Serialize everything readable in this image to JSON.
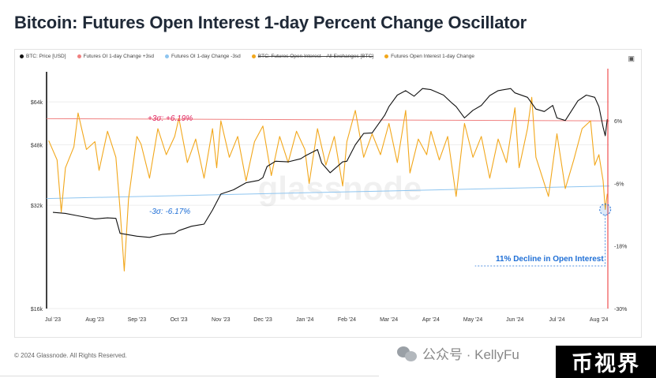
{
  "title": "Bitcoin: Futures Open Interest 1-day Percent Change Oscillator",
  "footer": "© 2024 Glassnode. All Rights Reserved.",
  "watermark": "glassnode",
  "wechat": {
    "text": "公众号 · KellyFu",
    "icon": "wechat-icon"
  },
  "stamp": "币视界",
  "colors": {
    "price": "#111111",
    "upper": "#f08080",
    "lower": "#8ec5f0",
    "oi_change": "#f2a71b",
    "red_line": "#f05050",
    "annotation": "#1f6fd6",
    "upper_text": "#e0245e"
  },
  "legend": [
    {
      "label": "BTC: Price [USD]",
      "color": "#111111",
      "strike": false
    },
    {
      "label": "Futures OI 1-day Change +3sd",
      "color": "#f08080",
      "strike": false
    },
    {
      "label": "Futures OI 1-day Change -3sd",
      "color": "#8ec5f0",
      "strike": false
    },
    {
      "label": "BTC: Futures Open Interest – All Exchanges [BTC]",
      "color": "#f2a71b",
      "strike": true
    },
    {
      "label": "Futures Open Interest 1-day Change",
      "color": "#f2a71b",
      "strike": false
    }
  ],
  "annotations": {
    "upper": "+3σ: +6.19%",
    "lower": "-3σ: -6.17%",
    "decline": "11% Decline in Open Interest"
  },
  "chart_data": {
    "type": "line",
    "x_ticks": [
      "Jul '23",
      "Aug '23",
      "Sep '23",
      "Oct '23",
      "Nov '23",
      "Dec '23",
      "Jan '24",
      "Feb '24",
      "Mar '24",
      "Apr '24",
      "May '24",
      "Jun '24",
      "Jul '24",
      "Aug '24"
    ],
    "x_tick_months": [
      0,
      1,
      2,
      3,
      4,
      5,
      6,
      7,
      8,
      9,
      10,
      11,
      12,
      13
    ],
    "x_range": [
      -0.15,
      13.25
    ],
    "y_left": {
      "ticks": [
        "$16k",
        "$32k",
        "$48k",
        "$64k"
      ],
      "tick_values": [
        16000,
        32000,
        48000,
        64000
      ],
      "range": [
        16000,
        80000
      ],
      "scale": "log"
    },
    "y_right": {
      "ticks": [
        "6%",
        "-6%",
        "-18%",
        "-30%"
      ],
      "tick_values": [
        6,
        -6,
        -18,
        -30
      ],
      "range": [
        -30,
        16
      ]
    },
    "series": [
      {
        "name": "BTC: Price [USD]",
        "axis": "left",
        "points": [
          [
            0,
            30500
          ],
          [
            0.3,
            30300
          ],
          [
            0.6,
            29800
          ],
          [
            1.0,
            29200
          ],
          [
            1.3,
            29400
          ],
          [
            1.5,
            29300
          ],
          [
            1.6,
            26500
          ],
          [
            2.0,
            26000
          ],
          [
            2.3,
            25800
          ],
          [
            2.6,
            26300
          ],
          [
            2.9,
            26500
          ],
          [
            3.0,
            27000
          ],
          [
            3.3,
            27800
          ],
          [
            3.6,
            28200
          ],
          [
            3.8,
            31000
          ],
          [
            4.0,
            34500
          ],
          [
            4.3,
            35500
          ],
          [
            4.6,
            37200
          ],
          [
            4.9,
            37800
          ],
          [
            5.0,
            38500
          ],
          [
            5.1,
            41500
          ],
          [
            5.3,
            43000
          ],
          [
            5.6,
            42800
          ],
          [
            5.9,
            43700
          ],
          [
            6.0,
            44500
          ],
          [
            6.3,
            46500
          ],
          [
            6.4,
            42500
          ],
          [
            6.6,
            39800
          ],
          [
            6.9,
            42800
          ],
          [
            7.0,
            43000
          ],
          [
            7.2,
            48000
          ],
          [
            7.4,
            51800
          ],
          [
            7.6,
            52000
          ],
          [
            7.9,
            58500
          ],
          [
            8.0,
            62000
          ],
          [
            8.2,
            67000
          ],
          [
            8.4,
            69000
          ],
          [
            8.6,
            66500
          ],
          [
            8.8,
            70000
          ],
          [
            9.0,
            69500
          ],
          [
            9.3,
            67000
          ],
          [
            9.5,
            63500
          ],
          [
            9.6,
            62000
          ],
          [
            9.8,
            57500
          ],
          [
            10.0,
            60500
          ],
          [
            10.2,
            62500
          ],
          [
            10.4,
            66800
          ],
          [
            10.6,
            69000
          ],
          [
            10.9,
            70000
          ],
          [
            11.0,
            68000
          ],
          [
            11.3,
            66000
          ],
          [
            11.5,
            61000
          ],
          [
            11.7,
            60000
          ],
          [
            11.9,
            62500
          ],
          [
            12.0,
            57500
          ],
          [
            12.2,
            56500
          ],
          [
            12.5,
            64500
          ],
          [
            12.7,
            67000
          ],
          [
            12.9,
            66000
          ],
          [
            13.0,
            62000
          ],
          [
            13.1,
            54000
          ],
          [
            13.15,
            51000
          ],
          [
            13.2,
            57000
          ]
        ]
      },
      {
        "name": "Futures OI 1-day Change +3sd",
        "axis": "right",
        "points": [
          [
            -0.15,
            6.4
          ],
          [
            13.25,
            6.0
          ]
        ]
      },
      {
        "name": "Futures OI 1-day Change -3sd",
        "axis": "right",
        "points": [
          [
            -0.15,
            -8.9
          ],
          [
            13.25,
            -6.5
          ]
        ]
      },
      {
        "name": "Futures Open Interest 1-day Change",
        "axis": "right",
        "points": [
          [
            -0.1,
            2.2
          ],
          [
            0.1,
            -1.5
          ],
          [
            0.2,
            -11.5
          ],
          [
            0.3,
            -3.0
          ],
          [
            0.5,
            1.0
          ],
          [
            0.6,
            7.5
          ],
          [
            0.8,
            0.5
          ],
          [
            1.0,
            2.0
          ],
          [
            1.1,
            -3.5
          ],
          [
            1.3,
            4.0
          ],
          [
            1.5,
            -1.0
          ],
          [
            1.6,
            -11.0
          ],
          [
            1.7,
            -22.8
          ],
          [
            1.8,
            -9.0
          ],
          [
            2.0,
            3.0
          ],
          [
            2.1,
            1.5
          ],
          [
            2.3,
            -5.0
          ],
          [
            2.5,
            4.5
          ],
          [
            2.7,
            -0.5
          ],
          [
            2.9,
            3.0
          ],
          [
            3.0,
            6.5
          ],
          [
            3.2,
            -2.0
          ],
          [
            3.4,
            2.5
          ],
          [
            3.6,
            -5.0
          ],
          [
            3.8,
            4.5
          ],
          [
            3.9,
            -3.0
          ],
          [
            4.0,
            6.0
          ],
          [
            4.2,
            -1.0
          ],
          [
            4.4,
            3.0
          ],
          [
            4.6,
            -5.5
          ],
          [
            4.8,
            2.0
          ],
          [
            5.0,
            5.0
          ],
          [
            5.2,
            -4.5
          ],
          [
            5.4,
            3.0
          ],
          [
            5.6,
            -2.0
          ],
          [
            5.8,
            4.0
          ],
          [
            6.0,
            0.5
          ],
          [
            6.1,
            -6.0
          ],
          [
            6.3,
            4.5
          ],
          [
            6.5,
            -2.5
          ],
          [
            6.7,
            3.0
          ],
          [
            6.9,
            -6.5
          ],
          [
            7.0,
            2.0
          ],
          [
            7.2,
            8.0
          ],
          [
            7.4,
            -1.0
          ],
          [
            7.6,
            3.5
          ],
          [
            7.8,
            -0.5
          ],
          [
            8.0,
            5.5
          ],
          [
            8.2,
            -2.0
          ],
          [
            8.4,
            8.0
          ],
          [
            8.5,
            -4.0
          ],
          [
            8.7,
            2.5
          ],
          [
            8.9,
            -0.5
          ],
          [
            9.0,
            4.0
          ],
          [
            9.2,
            -1.5
          ],
          [
            9.4,
            3.0
          ],
          [
            9.6,
            -8.5
          ],
          [
            9.8,
            5.5
          ],
          [
            10.0,
            -1.0
          ],
          [
            10.2,
            3.0
          ],
          [
            10.4,
            -5.0
          ],
          [
            10.6,
            2.5
          ],
          [
            10.8,
            -2.0
          ],
          [
            11.0,
            8.5
          ],
          [
            11.1,
            -3.0
          ],
          [
            11.3,
            4.5
          ],
          [
            11.4,
            10.5
          ],
          [
            11.5,
            -1.0
          ],
          [
            11.7,
            -6.0
          ],
          [
            11.8,
            -8.5
          ],
          [
            12.0,
            3.5
          ],
          [
            12.2,
            -7.0
          ],
          [
            12.4,
            -1.5
          ],
          [
            12.6,
            4.5
          ],
          [
            12.8,
            6.0
          ],
          [
            12.9,
            -2.5
          ],
          [
            13.0,
            -0.5
          ],
          [
            13.1,
            -5.5
          ],
          [
            13.15,
            -11.0
          ],
          [
            13.2,
            -8.0
          ]
        ]
      }
    ]
  }
}
